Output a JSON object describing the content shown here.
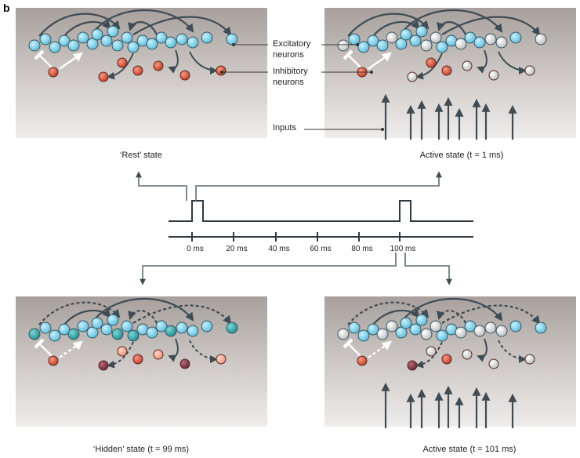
{
  "figure": {
    "panel_letter": "b",
    "labels": {
      "excitatory": [
        "Excitatory",
        "neurons"
      ],
      "inhibitory": [
        "Inhibitory",
        "neurons"
      ],
      "inputs": "Inputs"
    },
    "captions": {
      "rest": "‘Rest’ state",
      "active1": "Active state (t = 1 ms)",
      "hidden": "‘Hidden’ state (t = 99 ms)",
      "active101": "Active state (t = 101 ms)"
    },
    "timeline_ticks": [
      "0 ms",
      "20 ms",
      "40 ms",
      "60 ms",
      "80 ms",
      "100 ms"
    ],
    "colors": {
      "excitatory_rest": "#7fcfe8",
      "excitatory_active": "#d6d8d9",
      "excitatory_hidden": "#2aa3a6",
      "inhibitory_rest": "#e2533a",
      "inhibitory_hidden_dark": "#8a3a4a",
      "inhibitory_hidden_light": "#f2ab8f",
      "arrow": "#3f4c55"
    }
  }
}
